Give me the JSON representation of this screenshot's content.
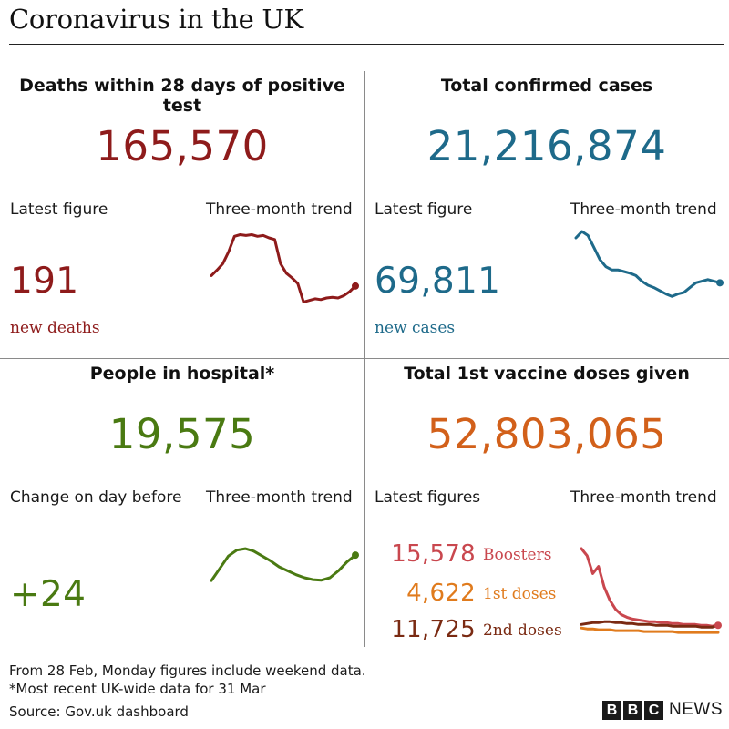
{
  "title": "Coronavirus in the UK",
  "colors": {
    "deaths": "#8e1b1b",
    "cases": "#1e6a8a",
    "hospital": "#4a7a12",
    "vaccine": "#d2601a",
    "boosters": "#c9474e",
    "first": "#e07b1d",
    "second": "#7a2a12"
  },
  "deaths": {
    "title": "Deaths within 28 days of positive test",
    "total": "165,570",
    "latest_label": "Latest figure",
    "trend_label": "Three-month trend",
    "latest": "191",
    "latest_sub": "new deaths"
  },
  "cases": {
    "title": "Total confirmed cases",
    "total": "21,216,874",
    "latest_label": "Latest figure",
    "trend_label": "Three-month trend",
    "latest": "69,811",
    "latest_sub": "new cases"
  },
  "hospital": {
    "title": "People in hospital*",
    "total": "19,575",
    "latest_label": "Change on day before",
    "trend_label": "Three-month trend",
    "latest": "+24"
  },
  "vaccine": {
    "title": "Total 1st vaccine doses given",
    "total": "52,803,065",
    "latest_label": "Latest figures",
    "trend_label": "Three-month trend",
    "rows": [
      {
        "value": "15,578",
        "name": "Boosters"
      },
      {
        "value": "4,622",
        "name": "1st doses"
      },
      {
        "value": "11,725",
        "name": "2nd doses"
      }
    ]
  },
  "footer": {
    "note1": "From 28 Feb, Monday figures include weekend data.",
    "note2": "*Most recent UK-wide data for 31 Mar",
    "source": "Source: Gov.uk dashboard"
  },
  "logo": {
    "letters": [
      "B",
      "B",
      "C"
    ],
    "news": "NEWS"
  },
  "chart_data": [
    {
      "type": "line",
      "series": [
        {
          "values": [
            45,
            52,
            60,
            75,
            94,
            96,
            95,
            96,
            94,
            95,
            92,
            90,
            60,
            48,
            42,
            35,
            12,
            14,
            16,
            15,
            17,
            18,
            17,
            20,
            25,
            32
          ]
        }
      ],
      "grid": false
    },
    {
      "type": "line",
      "series": [
        {
          "values": [
            92,
            100,
            95,
            80,
            65,
            56,
            52,
            52,
            50,
            48,
            45,
            38,
            33,
            30,
            26,
            22,
            19,
            22,
            24,
            30,
            36,
            38,
            40,
            38,
            36
          ]
        }
      ],
      "grid": false
    },
    {
      "type": "line",
      "series": [
        {
          "values": [
            20,
            45,
            70,
            82,
            85,
            80,
            70,
            60,
            48,
            40,
            32,
            26,
            22,
            21,
            26,
            40,
            58,
            72
          ]
        }
      ],
      "grid": false
    },
    {
      "type": "line",
      "series": [
        {
          "name": "Boosters",
          "values": [
            98,
            90,
            70,
            78,
            55,
            40,
            30,
            24,
            21,
            19,
            18,
            17,
            16,
            16,
            15,
            15,
            14,
            14,
            13,
            13,
            13,
            12,
            12,
            11,
            13
          ]
        },
        {
          "name": "1st doses",
          "values": [
            9,
            8,
            8,
            7,
            7,
            7,
            6,
            6,
            6,
            6,
            6,
            5,
            5,
            5,
            5,
            5,
            5,
            4,
            4,
            4,
            4,
            4,
            4,
            4,
            4
          ]
        },
        {
          "name": "2nd doses",
          "values": [
            13,
            14,
            15,
            15,
            16,
            16,
            15,
            15,
            14,
            14,
            13,
            13,
            13,
            12,
            12,
            12,
            11,
            11,
            11,
            11,
            11,
            10,
            10,
            10,
            12
          ]
        }
      ],
      "grid": false
    }
  ]
}
